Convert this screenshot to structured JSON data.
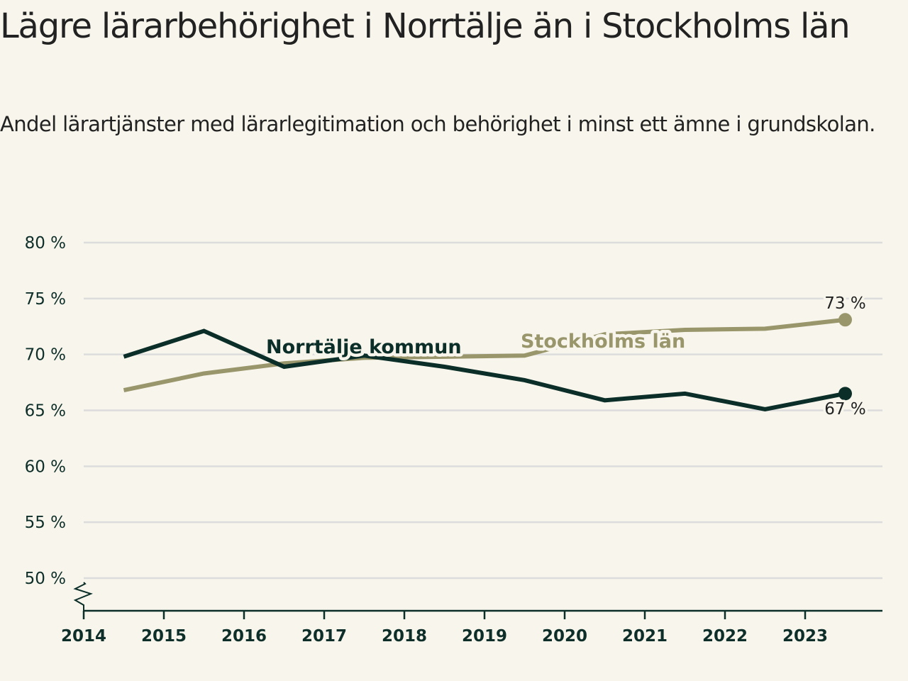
{
  "header": {
    "title": "Lägre lärarbehörighet i Norrtälje än i Stockholms län",
    "subtitle": "Andel lärartjänster med lärarlegitimation och behörighet i minst ett ämne i grundskolan."
  },
  "colors": {
    "background": "#f8f6ec",
    "norrtalje": "#0b2e28",
    "stockholm": "#9a966c",
    "grid": "#dcdcdc",
    "axis": "#0b2e28"
  },
  "chart_data": {
    "type": "line",
    "title": "Lägre lärarbehörighet i Norrtälje än i Stockholms län",
    "subtitle": "Andel lärartjänster med lärarlegitimation och behörighet i minst ett ämne i grundskolan.",
    "xlabel": "",
    "ylabel": "",
    "x": [
      2014.5,
      2015.5,
      2016.5,
      2017.5,
      2018.5,
      2019.5,
      2020.5,
      2021.5,
      2022.5,
      2023.5
    ],
    "xlim": [
      2014,
      2024
    ],
    "ylim": [
      47,
      80
    ],
    "y_axis_break": true,
    "grid": true,
    "x_ticks": [
      "2014",
      "2015",
      "2016",
      "2017",
      "2018",
      "2019",
      "2020",
      "2021",
      "2022",
      "2023"
    ],
    "x_tick_values": [
      2014,
      2015,
      2016,
      2017,
      2018,
      2019,
      2020,
      2021,
      2022,
      2023
    ],
    "y_ticks": [
      "50 %",
      "55 %",
      "60 %",
      "65 %",
      "70 %",
      "75 %",
      "80 %"
    ],
    "y_tick_values": [
      50,
      55,
      60,
      65,
      70,
      75,
      80
    ],
    "series": [
      {
        "name": "Norrtälje kommun",
        "color": "#0b2e28",
        "values": [
          69.8,
          72.1,
          68.9,
          69.9,
          68.9,
          67.7,
          65.9,
          66.5,
          65.1,
          66.5
        ],
        "end_label": "67 %",
        "label_position": "above-line-middle"
      },
      {
        "name": "Stockholms län",
        "color": "#9a966c",
        "values": [
          66.8,
          68.3,
          69.2,
          69.7,
          69.8,
          69.9,
          71.8,
          72.2,
          72.3,
          73.1
        ],
        "end_label": "73 %",
        "label_position": "above-line-middle"
      }
    ],
    "legend": "inline labels"
  }
}
